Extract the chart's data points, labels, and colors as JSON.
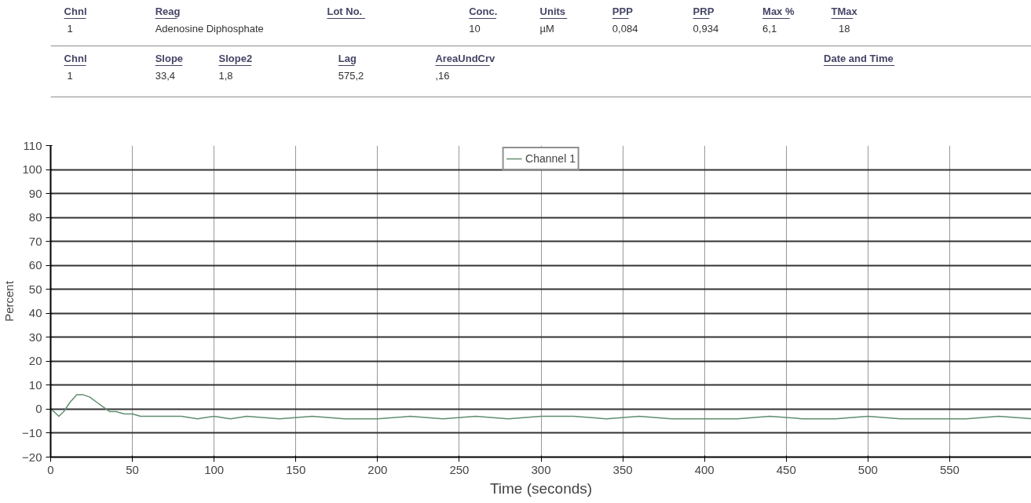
{
  "chart_data": {
    "type": "line",
    "xlabel": "Time (seconds)",
    "ylabel": "Percent",
    "x": [
      0,
      2,
      5,
      8,
      12,
      16,
      20,
      24,
      28,
      32,
      36,
      40,
      45,
      50,
      55,
      60,
      70,
      80,
      90,
      100,
      110,
      120,
      140,
      160,
      180,
      200,
      220,
      240,
      260,
      280,
      300,
      320,
      340,
      360,
      380,
      400,
      420,
      440,
      460,
      480,
      500,
      520,
      540,
      560,
      580,
      600
    ],
    "series": [
      {
        "name": "Channel 1",
        "color": "#5f8f6f",
        "values": [
          0,
          -1,
          -3,
          -1,
          3,
          6,
          6,
          5,
          3,
          1,
          -1,
          -1,
          -2,
          -2,
          -3,
          -3,
          -3,
          -3,
          -4,
          -3,
          -4,
          -3,
          -4,
          -3,
          -4,
          -4,
          -3,
          -4,
          -3,
          -4,
          -3,
          -3,
          -4,
          -3,
          -4,
          -4,
          -4,
          -3,
          -4,
          -4,
          -3,
          -4,
          -4,
          -4,
          -3,
          -4
        ]
      }
    ],
    "xlim": [
      0,
      600
    ],
    "ylim": [
      -20,
      110
    ],
    "xticks": [
      0,
      50,
      100,
      150,
      200,
      250,
      300,
      350,
      400,
      450,
      500,
      550
    ],
    "yticks": [
      -20,
      -10,
      0,
      10,
      20,
      30,
      40,
      50,
      60,
      70,
      80,
      90,
      100,
      110
    ],
    "grid": true,
    "legend": "top",
    "marker": "none",
    "line_style": "solid",
    "annotations": [
      "Chnl",
      "1",
      "Reag",
      "Adenosine Diphosphate",
      "Lot No.",
      "Conc.",
      "10",
      "Units",
      "µM",
      "PPP",
      "0,084",
      "PRP",
      "0,934",
      "Max %",
      "6,1",
      "TMax",
      "18",
      "Chnl",
      "1",
      "Slope",
      "33,4",
      "Slope2",
      "1,8",
      "Lag",
      "575,2",
      "AreaUndCrv",
      ",16",
      "Date and Time"
    ]
  }
}
